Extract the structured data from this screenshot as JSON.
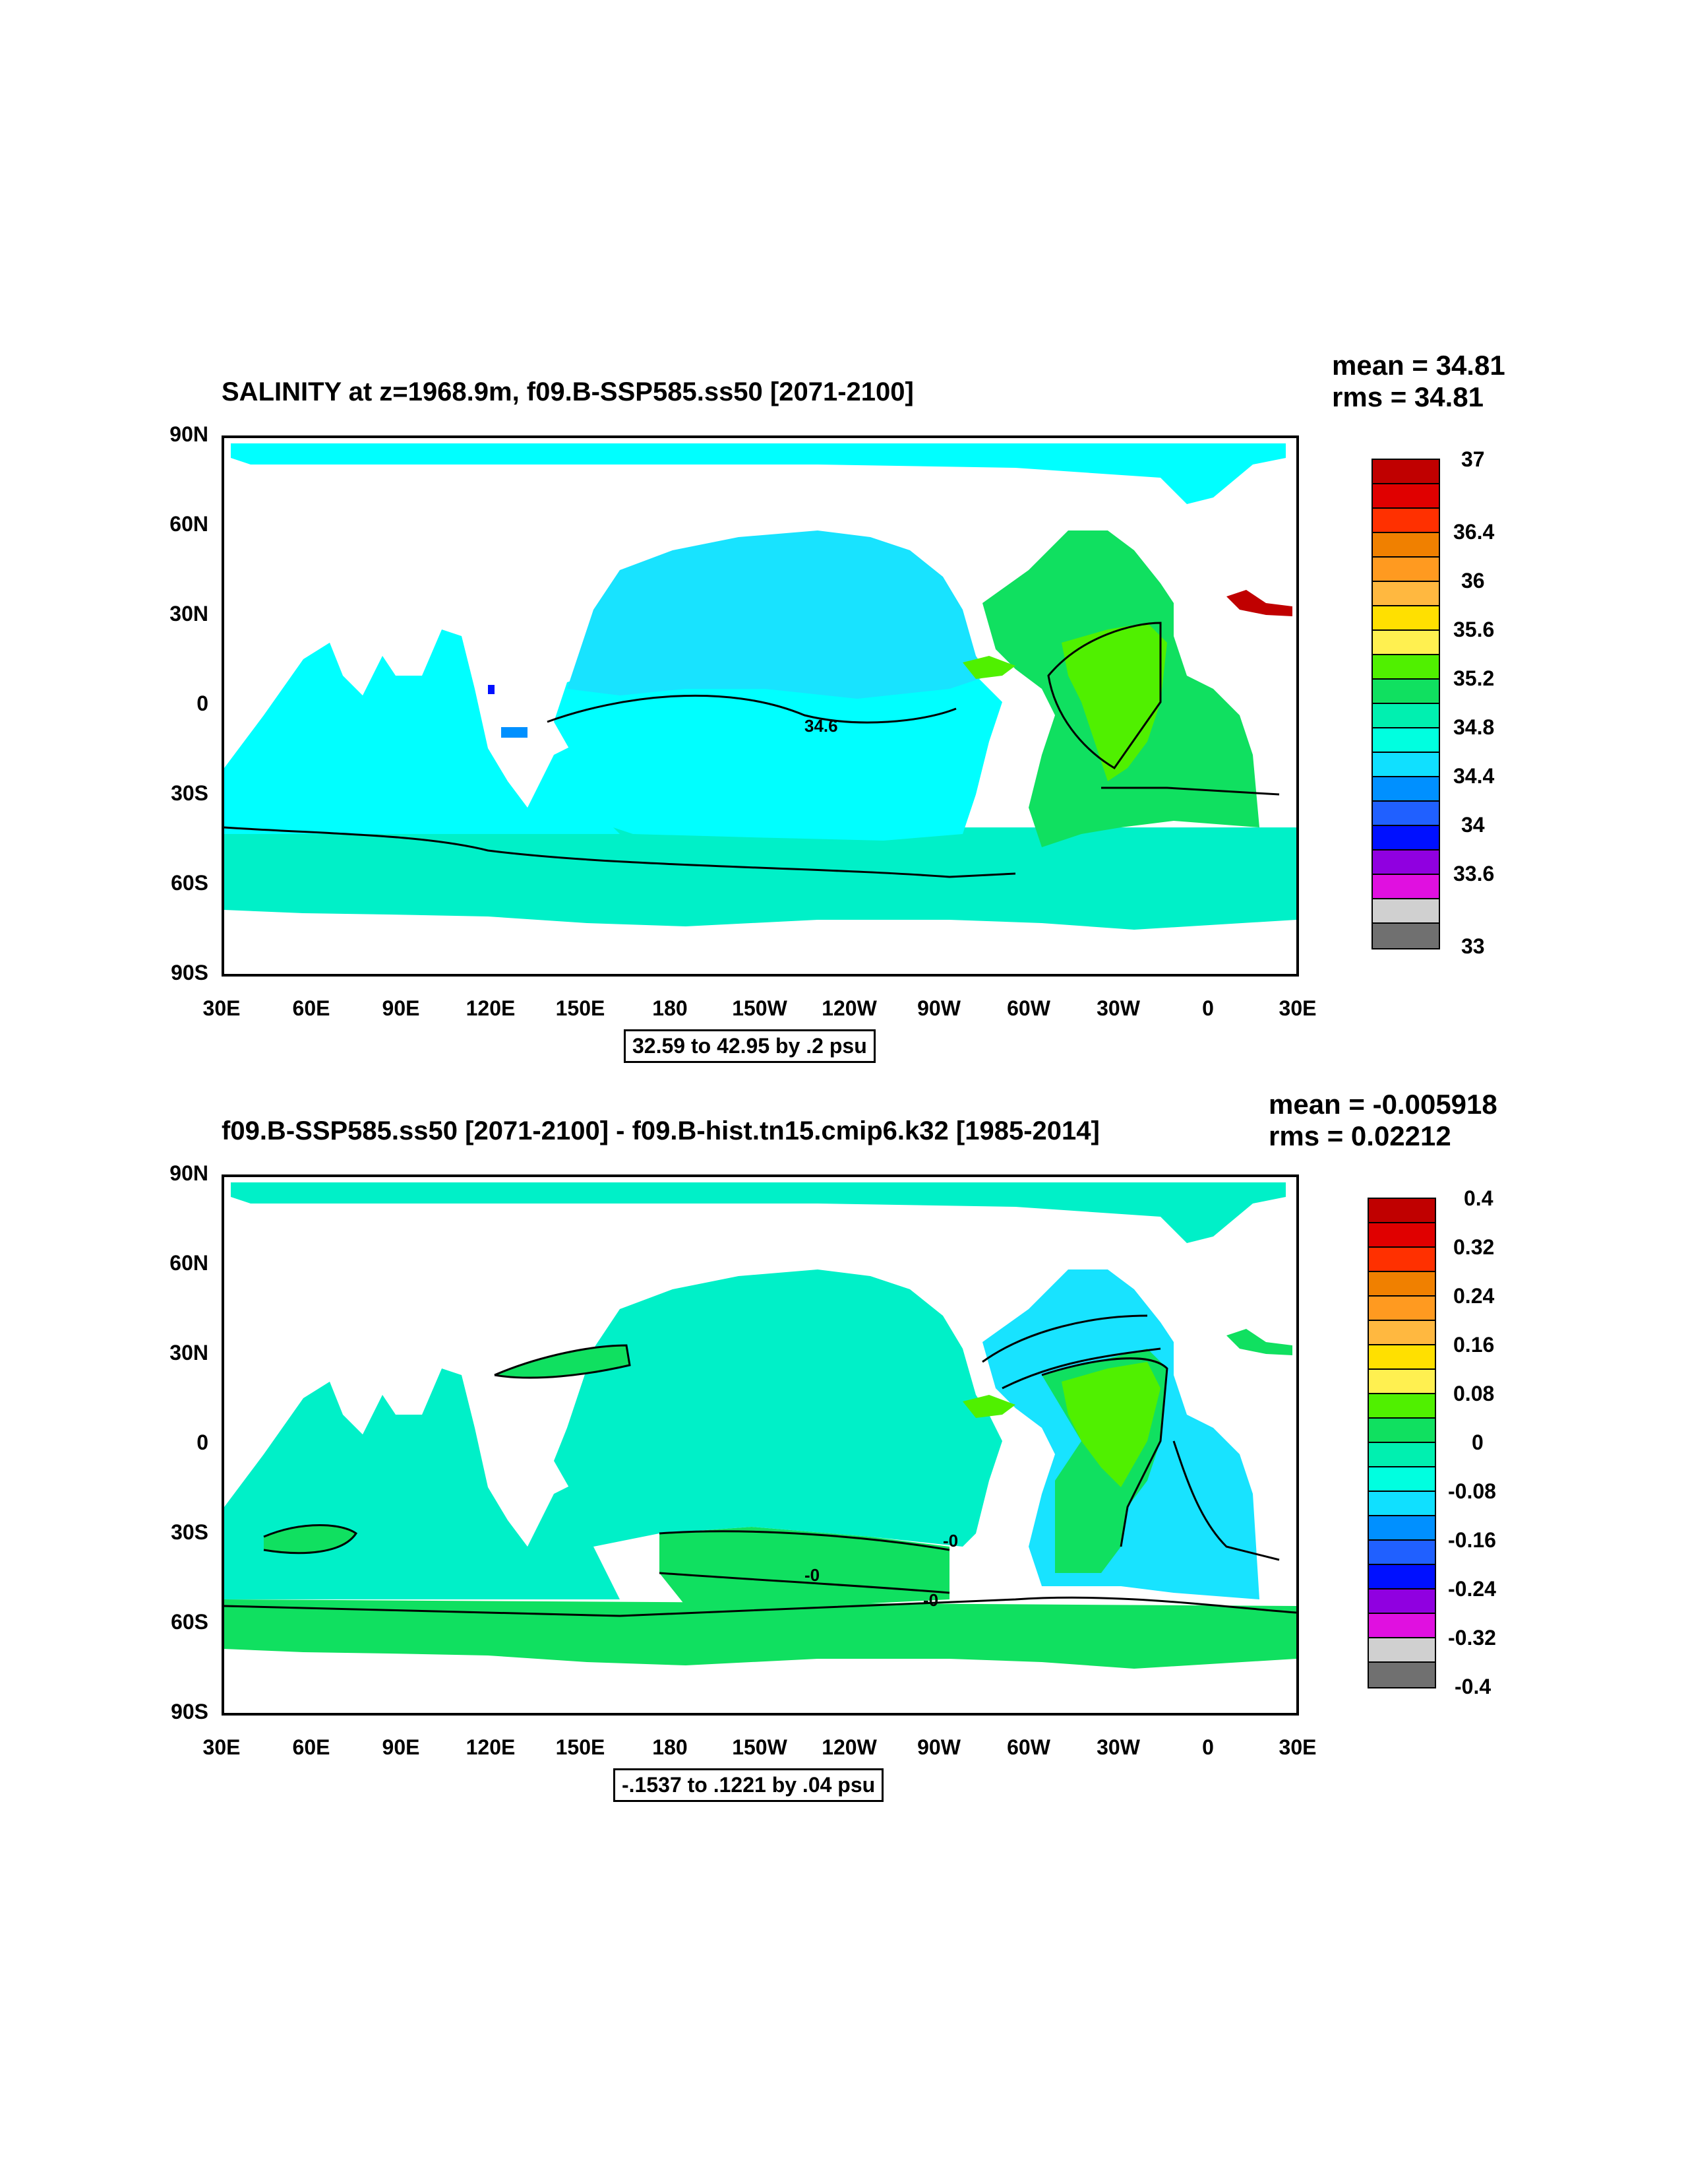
{
  "panel_top": {
    "title": "SALINITY at z=1968.9m, f09.B-SSP585.ss50 [2071-2100]",
    "mean": "mean = 34.81",
    "rms": "rms = 34.81",
    "range_text": "32.59 to 42.95 by .2 psu",
    "contour_label": "34.6",
    "colorbar_labels": [
      "37",
      "36.4",
      "36",
      "35.6",
      "35.2",
      "34.8",
      "34.4",
      "34",
      "33.6",
      "33"
    ]
  },
  "panel_bottom": {
    "title": "f09.B-SSP585.ss50 [2071-2100] - f09.B-hist.tn15.cmip6.k32 [1985-2014]",
    "mean": "mean = -0.005918",
    "rms": "rms = 0.02212",
    "range_text": "-.1537 to .1221 by .04 psu",
    "contour_labels": [
      "-0",
      "-0",
      "-0"
    ],
    "colorbar_labels": [
      "0.4",
      "0.32",
      "0.24",
      "0.16",
      "0.08",
      "0",
      "-0.08",
      "-0.16",
      "-0.24",
      "-0.32",
      "-0.4"
    ]
  },
  "axes": {
    "lat_labels": [
      "90N",
      "60N",
      "30N",
      "0",
      "30S",
      "60S",
      "90S"
    ],
    "lon_labels": [
      "30E",
      "60E",
      "90E",
      "120E",
      "150E",
      "180",
      "150W",
      "120W",
      "90W",
      "60W",
      "30W",
      "0",
      "30E"
    ]
  },
  "colors": {
    "colorbar": [
      "#c00000",
      "#e00000",
      "#ff3000",
      "#f08000",
      "#ff9a20",
      "#ffb840",
      "#ffe000",
      "#fff050",
      "#50f000",
      "#10e060",
      "#00f0b0",
      "#00ffe0",
      "#10e0ff",
      "#0090ff",
      "#2060ff",
      "#0010ff",
      "#9000e0",
      "#e010e0",
      "#d0d0d0",
      "#707070"
    ],
    "ocean_top_main": "#00ffff",
    "ocean_top_pacific": "#18e3ff",
    "ocean_top_south": "#00f0c8",
    "atlantic_top": "#10e060",
    "atlantic_top_core": "#50f000",
    "ocean_bottom_main": "#00f0c8",
    "southern_bottom": "#10e060",
    "atlantic_bottom_neg": "#18e3ff",
    "atlantic_bottom_core": "#50f000"
  }
}
